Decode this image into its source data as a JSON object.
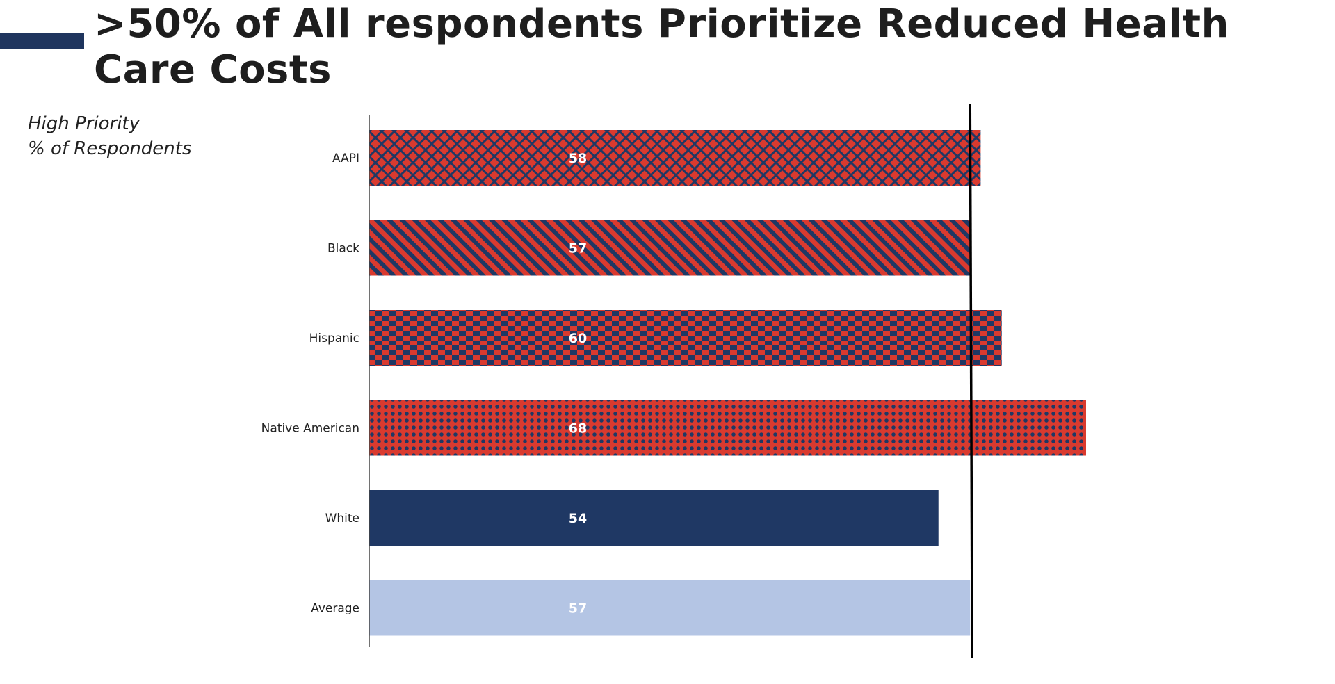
{
  "title": ">50% of All respondents Prioritize Reduced Health Care Costs",
  "subtitle_line1": "High Priority",
  "subtitle_line2": "% of Respondents",
  "colors": {
    "red": "#d93a2f",
    "navy": "#1f3864",
    "light_blue": "#b4c5e4",
    "accent": "#1f355e"
  },
  "chart_data": {
    "type": "bar",
    "orientation": "horizontal",
    "categories": [
      "AAPI",
      "Black",
      "Hispanic",
      "Native American",
      "White",
      "Average"
    ],
    "values": [
      58,
      57,
      60,
      68,
      54,
      57
    ],
    "fills": [
      "crosshatch red/navy",
      "diagonal stripes red/navy",
      "checkerboard red/navy",
      "dots navy on red",
      "solid navy",
      "solid light blue"
    ],
    "reference_line": {
      "value": 57
    },
    "xlim": [
      0,
      68
    ],
    "grid": false,
    "xlabel": "",
    "ylabel": ""
  }
}
